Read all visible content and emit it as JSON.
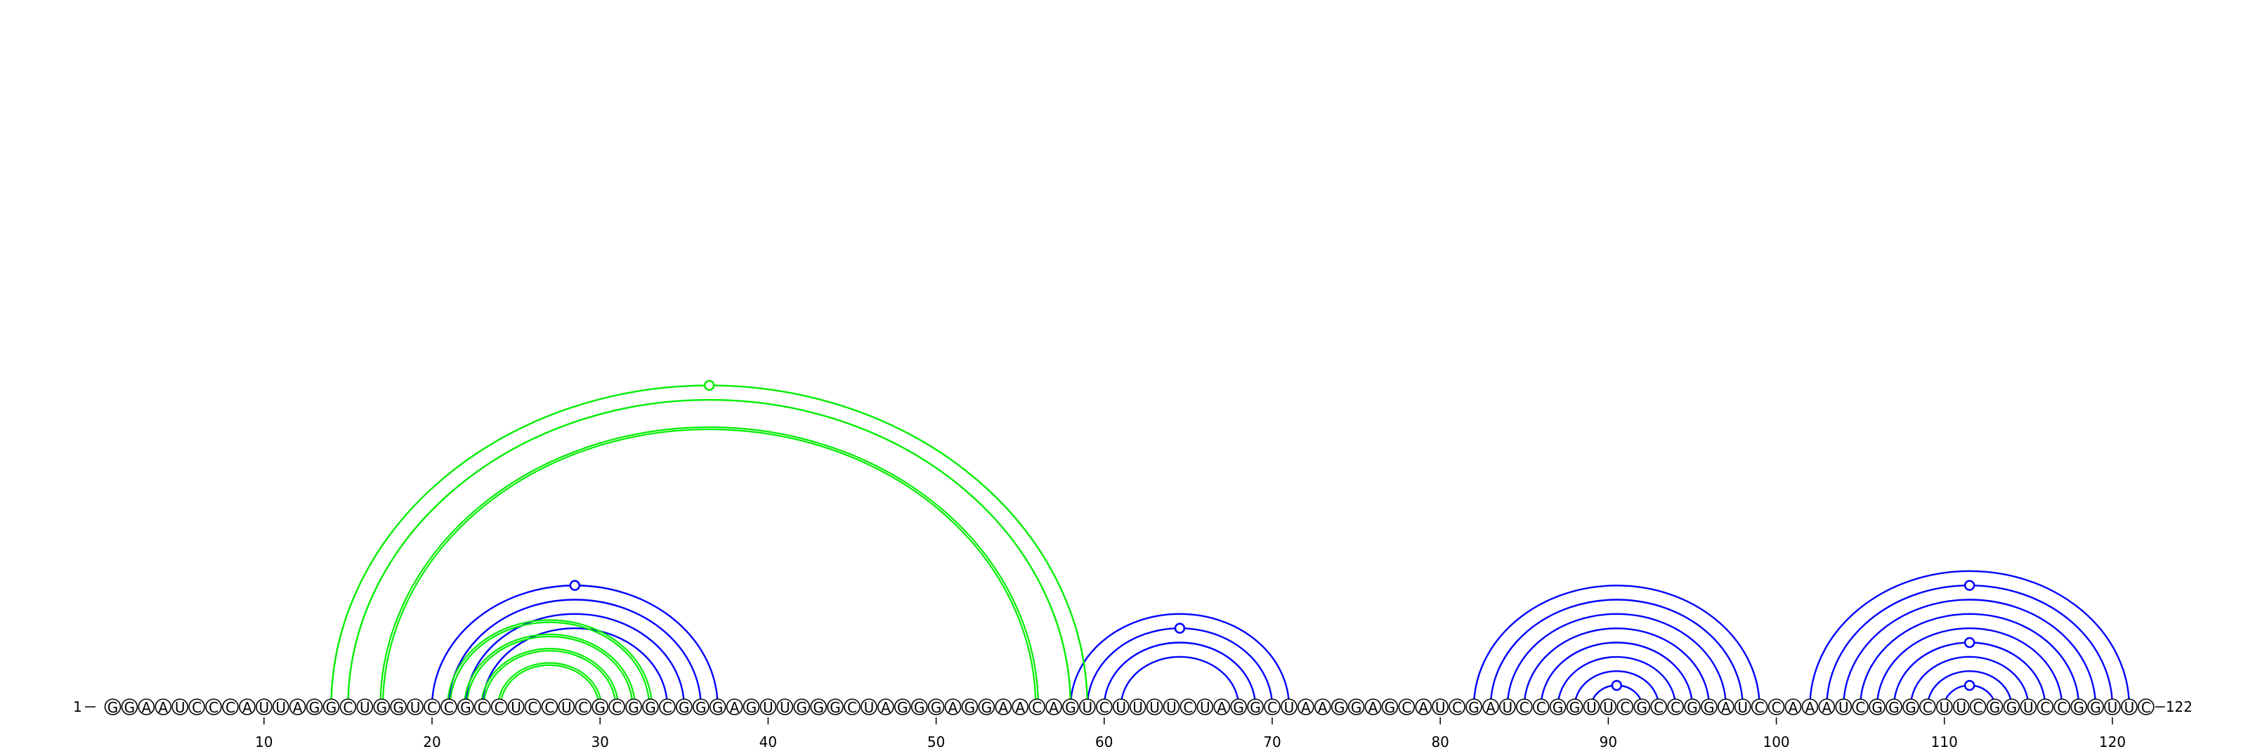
{
  "chart_data": {
    "type": "arc-diagram",
    "sequence": "GGAAUCCCAUUAGGCUGGUCCGCCUCCUCGCGGCGGGAGUUGGGCUAGGGAGGAACAGUCUUUUCUAGGCUAAGGAGCAUCGAUCCGGUUCGCCGGAUCCAAAUCGGGCUUCGGUCCGGUUC",
    "length": 122,
    "start_label": "1",
    "end_label": "122",
    "ticks": [
      10,
      20,
      30,
      40,
      50,
      60,
      70,
      80,
      90,
      100,
      110,
      120
    ],
    "colors": {
      "structure_arcs": "#0000ff",
      "alternate_arcs": "#00ee00",
      "nucleotide_outline": "#000000"
    },
    "arc_groups": [
      {
        "color": "blue",
        "double": false,
        "pairs": [
          [
            20,
            37
          ],
          [
            21,
            36
          ],
          [
            22,
            35
          ],
          [
            23,
            34
          ]
        ]
      },
      {
        "color": "blue",
        "double": false,
        "pairs": [
          [
            58,
            71
          ],
          [
            59,
            70
          ],
          [
            60,
            69
          ],
          [
            61,
            68
          ]
        ]
      },
      {
        "color": "blue",
        "double": false,
        "pairs": [
          [
            82,
            99
          ],
          [
            83,
            98
          ],
          [
            84,
            97
          ],
          [
            85,
            96
          ],
          [
            86,
            95
          ],
          [
            87,
            94
          ],
          [
            88,
            93
          ],
          [
            89,
            92
          ]
        ]
      },
      {
        "color": "blue",
        "double": false,
        "pairs": [
          [
            102,
            121
          ],
          [
            103,
            120
          ],
          [
            104,
            119
          ],
          [
            105,
            118
          ],
          [
            106,
            117
          ],
          [
            107,
            116
          ],
          [
            108,
            115
          ],
          [
            109,
            114
          ],
          [
            110,
            113
          ]
        ]
      },
      {
        "color": "green",
        "double": false,
        "pairs": [
          [
            14,
            59
          ],
          [
            15,
            58
          ]
        ]
      },
      {
        "color": "green",
        "double": true,
        "pairs": [
          [
            17,
            56
          ]
        ]
      },
      {
        "color": "green",
        "double": true,
        "pairs": [
          [
            21,
            33
          ],
          [
            22,
            32
          ],
          [
            23,
            31
          ],
          [
            24,
            30
          ]
        ]
      }
    ],
    "hairpin_markers": [
      {
        "color": "blue",
        "pair": [
          20,
          37
        ]
      },
      {
        "color": "blue",
        "pair": [
          59,
          70
        ]
      },
      {
        "color": "blue",
        "pair": [
          89,
          92
        ]
      },
      {
        "color": "blue",
        "pair": [
          103,
          120
        ]
      },
      {
        "color": "blue",
        "pair": [
          107,
          116
        ]
      },
      {
        "color": "blue",
        "pair": [
          110,
          113
        ]
      },
      {
        "color": "green",
        "pair": [
          14,
          59
        ]
      }
    ]
  }
}
